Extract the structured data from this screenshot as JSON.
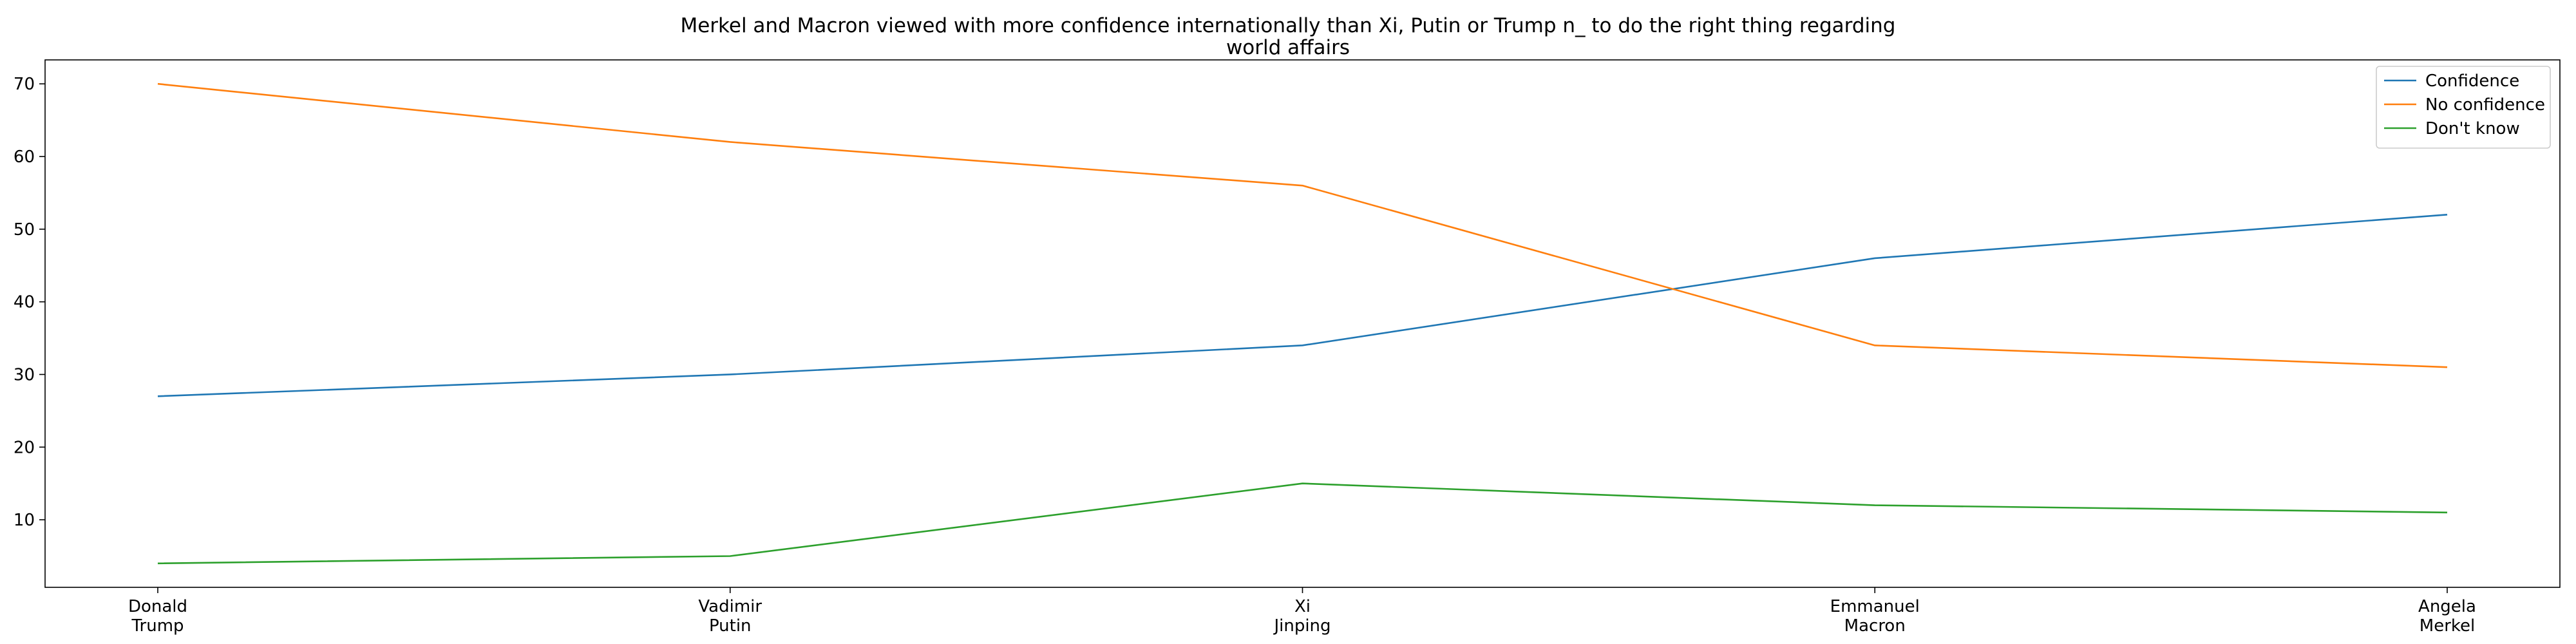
{
  "chart_data": {
    "type": "line",
    "title_lines": [
      "Merkel and Macron viewed with more confidence internationally than Xi, Putin or Trump n_ to do the right thing regarding",
      "world affairs"
    ],
    "categories": [
      [
        "Donald",
        "Trump"
      ],
      [
        "Vadimir",
        "Putin"
      ],
      [
        "Xi",
        "Jinping"
      ],
      [
        "Emmanuel",
        "Macron"
      ],
      [
        "Angela",
        "Merkel"
      ]
    ],
    "series": [
      {
        "name": "Confidence",
        "color": "#1f77b4",
        "values": [
          27,
          30,
          34,
          46,
          52
        ]
      },
      {
        "name": "No confidence",
        "color": "#ff7f0e",
        "values": [
          70,
          62,
          56,
          34,
          31
        ]
      },
      {
        "name": "Don't know",
        "color": "#2ca02c",
        "values": [
          4,
          5,
          15,
          12,
          11
        ]
      }
    ],
    "yticks": [
      10,
      20,
      30,
      40,
      50,
      60,
      70
    ],
    "ylim": [
      0.7,
      73.3
    ],
    "xlabel": "",
    "ylabel": "",
    "grid": false,
    "legend_position": "top-right"
  }
}
